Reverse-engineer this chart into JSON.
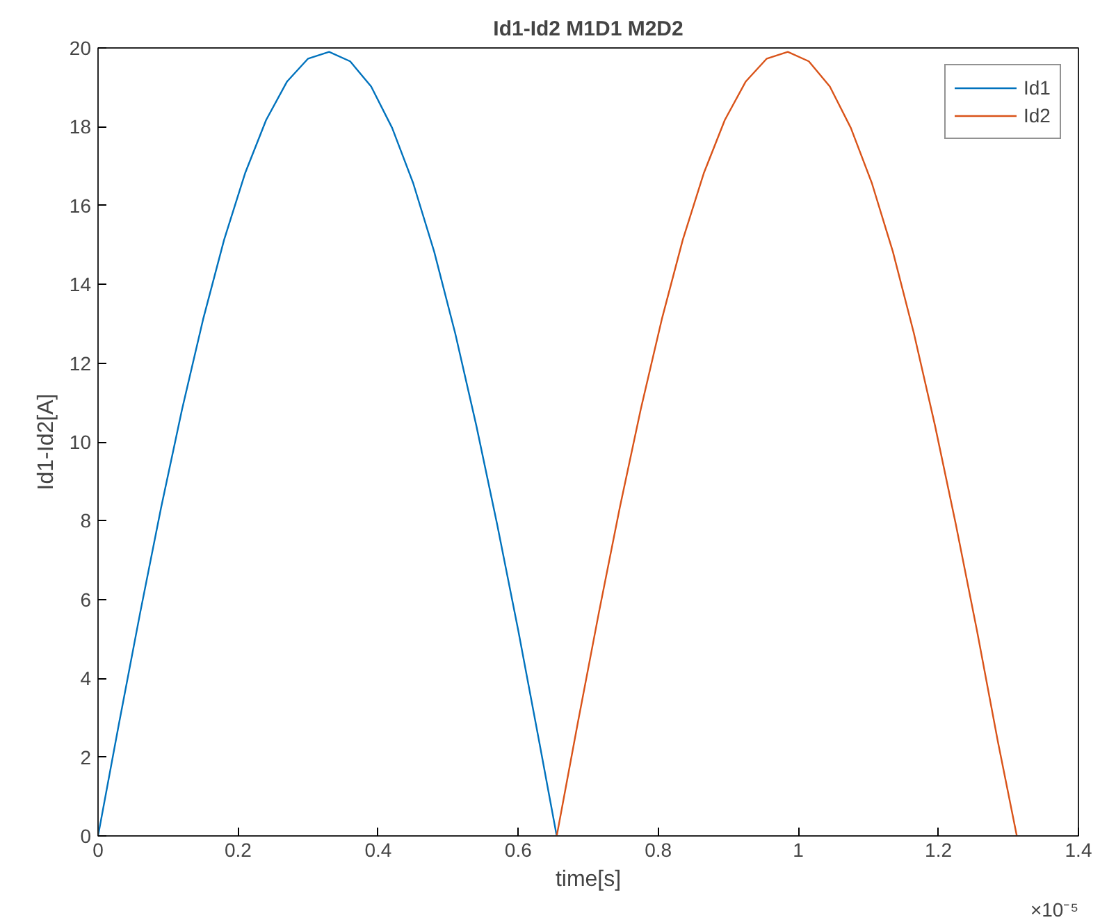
{
  "chart_data": {
    "type": "line",
    "title": "Id1-Id2 M1D1 M2D2",
    "xlabel": "time[s]",
    "ylabel": "Id1-Id2[A]",
    "xlim": [
      0,
      1.4
    ],
    "ylim": [
      0,
      20
    ],
    "xticks": [
      0,
      0.2,
      0.4,
      0.6,
      0.8,
      1,
      1.2,
      1.4
    ],
    "yticks": [
      0,
      2,
      4,
      6,
      8,
      10,
      12,
      14,
      16,
      18,
      20
    ],
    "grid": false,
    "legend": "top right",
    "marker": "none",
    "line_style": "solid",
    "annotations": [
      "×10⁻⁵"
    ],
    "series": [
      {
        "name": "Id1",
        "color": "#0072bd",
        "x": [
          0,
          0.03,
          0.06,
          0.09,
          0.12,
          0.15,
          0.18,
          0.21,
          0.24,
          0.27,
          0.3,
          0.33,
          0.36,
          0.39,
          0.42,
          0.45,
          0.48,
          0.51,
          0.54,
          0.57,
          0.6,
          0.63,
          0.655
        ],
        "values": [
          0,
          2.86,
          5.65,
          8.33,
          10.83,
          13.11,
          15.13,
          16.82,
          18.17,
          19.15,
          19.73,
          19.9,
          19.66,
          19.02,
          17.97,
          16.57,
          14.83,
          12.76,
          10.43,
          7.9,
          5.22,
          2.39,
          0
        ]
      },
      {
        "name": "Id2",
        "color": "#d95319",
        "x": [
          0.655,
          0.685,
          0.715,
          0.745,
          0.775,
          0.805,
          0.835,
          0.865,
          0.895,
          0.925,
          0.955,
          0.985,
          1.015,
          1.045,
          1.075,
          1.105,
          1.135,
          1.165,
          1.195,
          1.225,
          1.255,
          1.285,
          1.312
        ],
        "values": [
          0,
          2.86,
          5.65,
          8.33,
          10.83,
          13.11,
          15.13,
          16.82,
          18.17,
          19.15,
          19.73,
          19.9,
          19.66,
          19.02,
          17.97,
          16.57,
          14.83,
          12.76,
          10.43,
          7.9,
          5.22,
          2.39,
          0
        ]
      }
    ]
  }
}
